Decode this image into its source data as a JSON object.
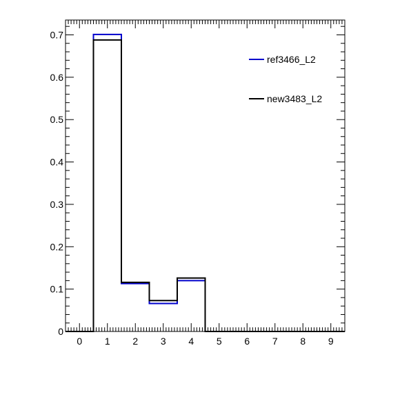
{
  "chart_data": {
    "type": "bar",
    "title": "",
    "xlabel": "",
    "ylabel": "",
    "xlim": [
      -0.5,
      9.5
    ],
    "ylim": [
      0,
      0.735
    ],
    "x_ticks": [
      0,
      1,
      2,
      3,
      4,
      5,
      6,
      7,
      8,
      9
    ],
    "y_ticks": [
      0,
      0.1,
      0.2,
      0.3,
      0.4,
      0.5,
      0.6,
      0.7
    ],
    "y_tick_labels": [
      "0",
      "0.1",
      "0.2",
      "0.3",
      "0.4",
      "0.5",
      "0.6",
      "0.7"
    ],
    "bin_width": 1,
    "grid": false,
    "legend_position": "top-right",
    "series": [
      {
        "name": "ref3466_L2",
        "color": "#0000cc",
        "x": [
          0,
          1,
          2,
          3,
          4,
          5,
          6,
          7,
          8,
          9
        ],
        "values": [
          0,
          0.701,
          0.113,
          0.066,
          0.12,
          0,
          0,
          0,
          0,
          0
        ]
      },
      {
        "name": "new3483_L2",
        "color": "#000000",
        "x": [
          0,
          1,
          2,
          3,
          4,
          5,
          6,
          7,
          8,
          9
        ],
        "values": [
          0,
          0.688,
          0.116,
          0.073,
          0.126,
          0,
          0,
          0,
          0,
          0
        ]
      }
    ]
  }
}
